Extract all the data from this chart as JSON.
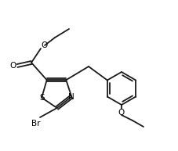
{
  "background": "#ffffff",
  "line_color": "#1a1a1a",
  "line_width": 1.3,
  "figsize": [
    2.28,
    1.93
  ],
  "dpi": 100,
  "label_Br": "Br",
  "label_S": "S",
  "label_N": "N",
  "label_O1": "O",
  "label_O2": "O",
  "label_O3": "O",
  "font_size": 7.5
}
